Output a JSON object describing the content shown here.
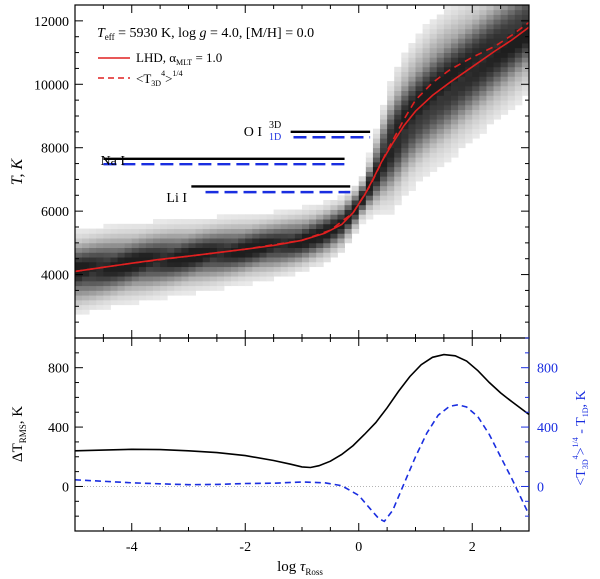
{
  "chart_data": [
    {
      "type": "heatmap",
      "panel": "top",
      "title": "",
      "xlabel": "",
      "ylabel": "T, K",
      "xlim": [
        -5,
        3
      ],
      "ylim": [
        2000,
        12500
      ],
      "x_ticks": [
        -4,
        -2,
        0,
        2
      ],
      "y_ticks": [
        4000,
        6000,
        8000,
        10000,
        12000
      ],
      "y_tick_labels": [
        "4000",
        "6000",
        "8000",
        "10000",
        "12000"
      ],
      "annotation": {
        "line1_a": "T",
        "line1_sub": "eff",
        "line1_b": " = 5930 K, log ",
        "line1_g": "g",
        "line1_c": " = 4.0, [M/H] = 0.0"
      },
      "legend": {
        "placement": "top-left",
        "entries": [
          {
            "style": "solid",
            "color": "#e02020",
            "label_a": "LHD, α",
            "label_sub": "MLT",
            "label_b": " = 1.0"
          },
          {
            "style": "dashed",
            "color": "#e02020",
            "label_a": "<T",
            "label_sub": "3D",
            "label_sup": "4",
            "label_b": ">",
            "label_sup2": "1/4"
          }
        ]
      },
      "series": [
        {
          "name": "LHD, αMLT = 1.0",
          "style": "solid",
          "color": "#e02020",
          "x": [
            -5,
            -4.5,
            -4,
            -3.5,
            -3,
            -2.5,
            -2,
            -1.5,
            -1,
            -0.6,
            -0.3,
            -0.1,
            0.1,
            0.25,
            0.4,
            0.6,
            0.8,
            1.0,
            1.3,
            1.6,
            2.0,
            2.4,
            2.7,
            3.0
          ],
          "y": [
            4100,
            4230,
            4360,
            4480,
            4580,
            4690,
            4800,
            4920,
            5080,
            5300,
            5580,
            5950,
            6500,
            7000,
            7550,
            8150,
            8700,
            9150,
            9650,
            10050,
            10550,
            11050,
            11400,
            11800
          ]
        },
        {
          "name": "<T3D^4>^1/4",
          "style": "dashed",
          "color": "#e02020",
          "x": [
            -5,
            -4,
            -3,
            -2,
            -1,
            -0.5,
            -0.1,
            0.2,
            0.5,
            0.8,
            1.0,
            1.3,
            1.6,
            2.0,
            2.4,
            2.7,
            3.0
          ],
          "y": [
            4100,
            4360,
            4580,
            4800,
            5080,
            5400,
            5950,
            6800,
            7900,
            8900,
            9500,
            10050,
            10450,
            10850,
            11200,
            11550,
            11950
          ]
        }
      ],
      "line_formation": [
        {
          "label": "O I",
          "label_3d": "3D",
          "label_1d": "1D",
          "x3d": [
            -1.2,
            0.2
          ],
          "x1d": [
            -1.15,
            0.2
          ],
          "y3d": 8500,
          "y1d": 8330,
          "color_3d": "#000000",
          "color_1d": "#1a2ee0"
        },
        {
          "label": "Na I",
          "x3d": [
            -4.5,
            -0.25
          ],
          "x1d": [
            -4.5,
            -0.25
          ],
          "y3d": 7650,
          "y1d": 7480,
          "color_3d": "#000000",
          "color_1d": "#1a2ee0"
        },
        {
          "label": "Li I",
          "x3d": [
            -2.95,
            -0.15
          ],
          "x1d": [
            -2.7,
            -0.15
          ],
          "y3d": 6780,
          "y1d": 6600,
          "color_3d": "#000000",
          "color_1d": "#1a2ee0"
        }
      ],
      "heatmap": {
        "description_values": "temperature distribution density, dark = high probability",
        "center": "LHD curve",
        "spread_K": [
          [
            -5,
            550
          ],
          [
            -2,
            450
          ],
          [
            -0.5,
            400
          ],
          [
            0.1,
            300
          ],
          [
            0.6,
            900
          ],
          [
            1.5,
            1000
          ],
          [
            3.0,
            850
          ]
        ]
      }
    },
    {
      "type": "line",
      "panel": "bottom",
      "xlabel_a": "log ",
      "xlabel_tau": "τ",
      "xlabel_sub": "Ross",
      "ylabel_left_a": "ΔT",
      "ylabel_left_sub": "RMS",
      "ylabel_left_b": ", K",
      "ylabel_right": "<T3D⁴>¹ᐟ⁴ - T1D, K",
      "ylabel_right_a": "<T",
      "ylabel_right_sub1": "3D",
      "ylabel_right_sup1": "4",
      "ylabel_right_b": ">",
      "ylabel_right_sup2": "1/4",
      "ylabel_right_c": " - T",
      "ylabel_right_sub2": "1D",
      "ylabel_right_d": ", K",
      "xlim": [
        -5,
        3
      ],
      "ylim_left": [
        -300,
        1000
      ],
      "ylim_right": [
        -300,
        1000
      ],
      "x_ticks": [
        -4,
        -2,
        0,
        2
      ],
      "x_tick_labels": [
        "-4",
        "-2",
        "0",
        "2"
      ],
      "y_ticks_left": [
        0,
        400,
        800
      ],
      "y_ticks_left_labels": [
        "0",
        "400",
        "800"
      ],
      "y_ticks_right": [
        0,
        400,
        800
      ],
      "y_ticks_right_labels": [
        "0",
        "400",
        "800"
      ],
      "zero_line": true,
      "series": [
        {
          "name": "ΔT_RMS",
          "style": "solid",
          "color": "#000000",
          "axis": "left",
          "x": [
            -5,
            -4.5,
            -4,
            -3.5,
            -3,
            -2.5,
            -2,
            -1.5,
            -1.2,
            -1.0,
            -0.85,
            -0.7,
            -0.5,
            -0.3,
            -0.1,
            0.1,
            0.3,
            0.5,
            0.7,
            0.9,
            1.1,
            1.3,
            1.5,
            1.7,
            1.9,
            2.1,
            2.3,
            2.5,
            2.7,
            3.0
          ],
          "y": [
            240,
            245,
            250,
            248,
            240,
            228,
            208,
            175,
            150,
            132,
            128,
            140,
            170,
            215,
            275,
            350,
            430,
            530,
            640,
            740,
            820,
            870,
            888,
            880,
            845,
            780,
            700,
            630,
            570,
            485
          ]
        },
        {
          "name": "<T3D^4>^1/4 - T1D",
          "style": "dashed",
          "color": "#1a2ee0",
          "axis": "right",
          "x": [
            -5,
            -4.5,
            -4,
            -3.5,
            -3,
            -2.5,
            -2,
            -1.5,
            -1.0,
            -0.6,
            -0.3,
            0.0,
            0.2,
            0.35,
            0.45,
            0.6,
            0.8,
            1.0,
            1.2,
            1.4,
            1.6,
            1.75,
            1.9,
            2.1,
            2.3,
            2.5,
            2.7,
            2.85,
            3.0
          ],
          "y": [
            45,
            35,
            25,
            18,
            12,
            14,
            20,
            22,
            30,
            25,
            5,
            -60,
            -150,
            -215,
            -235,
            -160,
            20,
            200,
            360,
            480,
            540,
            550,
            535,
            470,
            350,
            200,
            50,
            -70,
            -190
          ]
        }
      ]
    }
  ]
}
